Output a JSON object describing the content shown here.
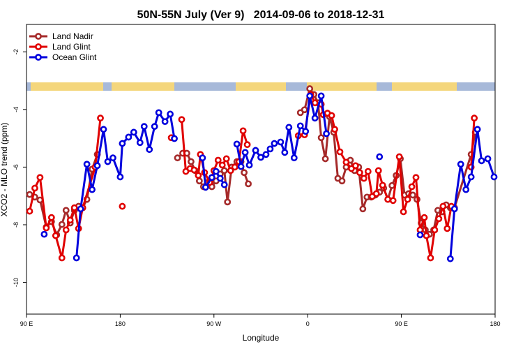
{
  "chart_data": {
    "type": "line",
    "title": "50N-55N July (Ver 9)   2014-09-06 to 2018-12-31",
    "xlabel": "Longitude",
    "ylabel": "XCO2 - MLO trend (ppm)",
    "xlim": [
      90,
      540
    ],
    "ylim": [
      -11.1,
      -1.05
    ],
    "xticks": [
      {
        "value": 90,
        "label": "90 E"
      },
      180,
      {
        "value": 270,
        "label": "90 W"
      },
      {
        "value": 360,
        "label": "0"
      },
      {
        "value": 450,
        "label": "90 E"
      },
      {
        "value": 540,
        "label": "180"
      }
    ],
    "yticks": [
      -2,
      -4,
      -6,
      -8,
      -10
    ],
    "legend": "top-left",
    "series": [
      {
        "name": "Land Nadir",
        "color": "#a52a2a",
        "x": [
          93,
          98,
          103,
          109,
          114,
          119,
          124,
          128,
          132,
          136,
          140,
          144,
          148,
          153,
          158,
          null,
          235,
          240,
          244,
          248,
          252,
          256,
          260,
          264,
          268,
          272,
          276,
          280,
          283,
          287,
          292,
          296,
          299,
          303,
          null,
          353,
          357,
          362,
          366,
          370,
          373,
          377,
          381,
          385,
          389,
          393,
          397,
          401,
          405,
          409,
          413,
          417,
          421,
          425,
          429,
          433,
          437,
          441,
          445,
          449,
          453,
          457,
          461,
          465,
          469,
          473,
          477,
          481,
          485,
          489,
          493,
          497,
          501,
          517,
          521
        ],
        "values": [
          -6.95,
          -7.04,
          -7.14,
          -8.08,
          -7.89,
          -8.35,
          -7.99,
          -7.5,
          -7.94,
          -7.5,
          -7.36,
          -7.41,
          -7.12,
          -6.07,
          -5.56,
          null,
          -5.68,
          -5.52,
          -5.52,
          -5.81,
          -6.12,
          -6.48,
          -6.68,
          -6.53,
          -6.68,
          -6.48,
          -6.24,
          -6.12,
          -7.21,
          -6.0,
          -5.81,
          -5.81,
          -6.19,
          -6.58,
          null,
          -4.11,
          -4.01,
          -3.28,
          -3.48,
          -3.77,
          -4.98,
          -5.71,
          -4.25,
          -4.79,
          -6.39,
          -6.48,
          -6.0,
          -5.76,
          -6.12,
          -6.0,
          -7.45,
          -7.04,
          -7.04,
          -6.97,
          -6.87,
          -6.73,
          -7.12,
          -6.64,
          -6.29,
          -5.71,
          -6.97,
          -6.92,
          -6.97,
          -7.12,
          -7.94,
          -8.18,
          -8.33,
          -8.18,
          -7.5,
          -7.55,
          -7.31,
          -7.41,
          -7.41,
          -5.56,
          -4.79
        ]
      },
      {
        "name": "Land Glint",
        "color": "#e00000",
        "x": [
          93,
          98,
          103,
          109,
          114,
          118,
          124,
          128,
          132,
          136,
          140,
          144,
          156,
          161,
          null,
          182,
          null,
          229,
          null,
          239,
          243,
          247,
          251,
          255,
          257,
          261,
          266,
          270,
          274,
          278,
          282,
          286,
          290,
          294,
          298,
          302,
          null,
          351,
          357,
          363,
          367,
          373,
          375,
          379,
          383,
          386,
          391,
          397,
          402,
          406,
          410,
          414,
          418,
          422,
          426,
          428,
          432,
          437,
          442,
          448,
          452,
          456,
          460,
          464,
          468,
          472,
          474,
          478,
          482,
          486,
          490,
          494,
          498,
          null,
          517,
          520
        ],
        "values": [
          -7.53,
          -6.73,
          -6.36,
          -8.11,
          -7.75,
          -8.38,
          -9.15,
          -8.18,
          -7.84,
          -7.41,
          -8.13,
          -7.41,
          -6.0,
          -4.3,
          null,
          -7.36,
          null,
          -4.98,
          null,
          -4.35,
          -6.15,
          -6.05,
          -6.1,
          -6.29,
          -5.56,
          -6.19,
          -6.53,
          -6.12,
          -5.76,
          -5.93,
          -5.71,
          -6.12,
          -6.0,
          -5.81,
          -4.74,
          -5.22,
          null,
          -4.91,
          -4.88,
          -3.48,
          -3.77,
          -3.82,
          -4.18,
          -4.13,
          -4.21,
          -4.69,
          -5.47,
          -5.83,
          -6.05,
          -5.95,
          -6.19,
          -6.39,
          -6.15,
          -7.02,
          -6.92,
          -6.12,
          -6.63,
          -7.12,
          -7.16,
          -5.64,
          -7.55,
          -7.12,
          -6.68,
          -6.36,
          -8.18,
          -7.75,
          -8.38,
          -9.15,
          -8.18,
          -7.79,
          -7.36,
          -8.13,
          -7.36,
          null,
          -6.0,
          -4.3
        ]
      },
      {
        "name": "Ocean Glint",
        "color": "#0000dd",
        "x": [
          107,
          null,
          138,
          142,
          148,
          153,
          158,
          164,
          168,
          173,
          180,
          182,
          188,
          193,
          199,
          203,
          208,
          213,
          217,
          223,
          228,
          232,
          null,
          259,
          262,
          268,
          272,
          276,
          280,
          null,
          292,
          296,
          300,
          304,
          310,
          315,
          320,
          324,
          328,
          334,
          338,
          342,
          347,
          353,
          358,
          362,
          367,
          373,
          378,
          null,
          429,
          null,
          468,
          null,
          497,
          501,
          507,
          512,
          517,
          523,
          527,
          533,
          539
        ],
        "values": [
          -8.33,
          null,
          -9.15,
          -7.45,
          -5.9,
          -6.78,
          -5.95,
          -4.69,
          -5.81,
          -5.68,
          -6.34,
          -5.18,
          -4.96,
          -4.79,
          -5.15,
          -4.59,
          -5.39,
          -4.59,
          -4.11,
          -4.42,
          -4.16,
          -5.01,
          null,
          -5.68,
          -6.7,
          -6.36,
          -6.15,
          -6.39,
          -6.61,
          null,
          -5.2,
          -5.98,
          -5.49,
          -5.93,
          -5.42,
          -5.66,
          -5.56,
          -5.37,
          -5.18,
          -5.13,
          -5.49,
          -4.62,
          -5.68,
          -4.57,
          -4.76,
          -3.53,
          -4.3,
          -3.53,
          -4.84,
          null,
          -5.64,
          null,
          -8.35,
          null,
          -9.18,
          -7.45,
          -5.9,
          -6.78,
          -6.34,
          -4.69,
          -5.78,
          -5.71,
          -6.34
        ]
      }
    ]
  }
}
